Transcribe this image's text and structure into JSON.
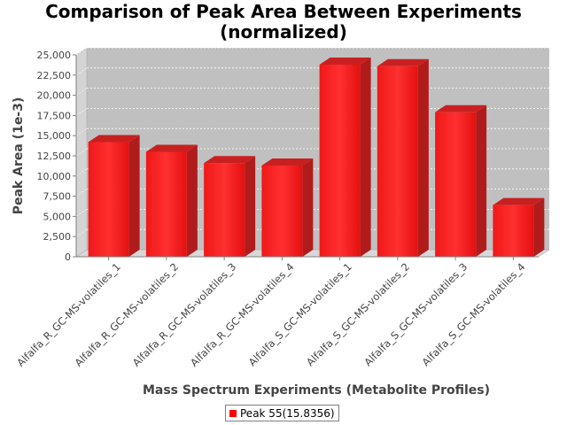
{
  "chart_data": {
    "type": "bar",
    "title_lines": [
      "Comparison of Peak Area Between Experiments",
      "(normalized)"
    ],
    "xlabel": "Mass Spectrum Experiments (Metabolite Profiles)",
    "ylabel": "Peak Area (1e-3)",
    "ylim": [
      0,
      25000
    ],
    "yticks": [
      0,
      2500,
      5000,
      7500,
      10000,
      12500,
      15000,
      17500,
      20000,
      22500,
      25000
    ],
    "ytick_labels": [
      "0",
      "2,500",
      "5,000",
      "7,500",
      "10,000",
      "12,500",
      "15,000",
      "17,500",
      "20,000",
      "22,500",
      "25,000"
    ],
    "grid": true,
    "legend_position": "bottom-center",
    "categories": [
      "Alfalfa_R_GC-MS-volatiles_1",
      "Alfalfa_R_GC-MS-volatiles_2",
      "Alfalfa_R_GC-MS-volatiles_3",
      "Alfalfa_R_GC-MS-volatiles_4",
      "Alfalfa_S_GC-MS-volatiles_1",
      "Alfalfa_S_GC-MS-volatiles_2",
      "Alfalfa_S_GC-MS-volatiles_3",
      "Alfalfa_S_GC-MS-volatiles_4"
    ],
    "series": [
      {
        "name": "Peak 55(15.8356)",
        "color": "#ff0000",
        "values": [
          14200,
          13000,
          11600,
          11300,
          23800,
          23600,
          17900,
          6400
        ]
      }
    ]
  }
}
